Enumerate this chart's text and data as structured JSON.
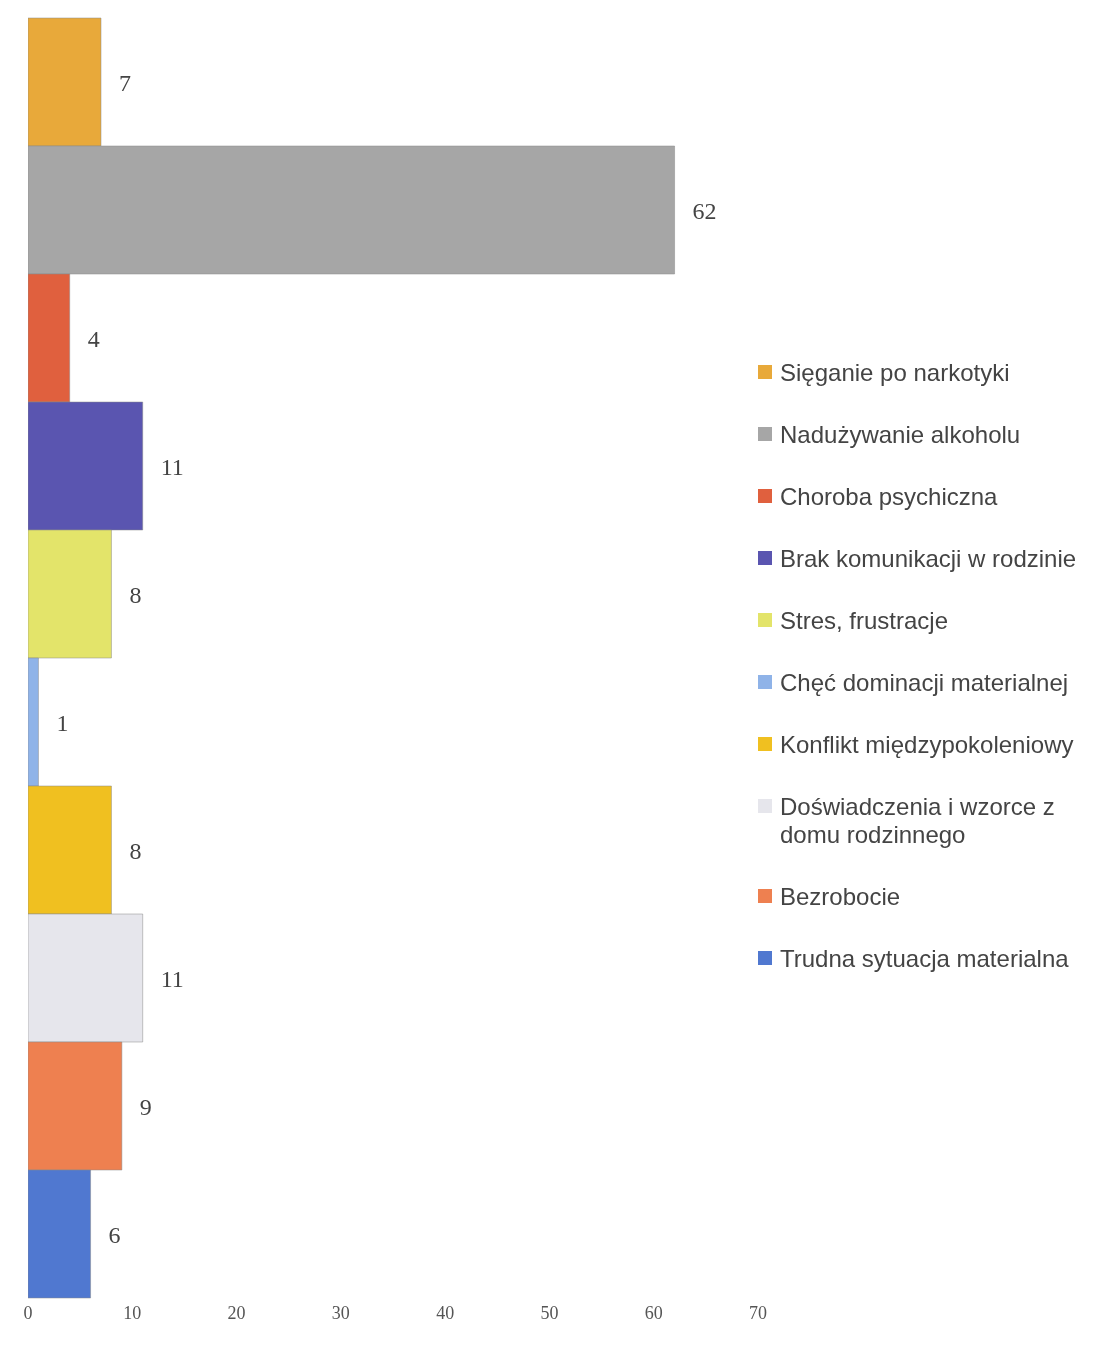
{
  "chart_data": {
    "type": "bar",
    "orientation": "horizontal",
    "stacked": true,
    "categories": [
      null,
      null,
      null,
      null,
      null,
      null,
      null,
      null,
      null,
      null
    ],
    "series": [
      {
        "name": "Sięganie po narkotyki",
        "color": "#e8a93a",
        "values": [
          7,
          null,
          null,
          null,
          null,
          null,
          null,
          null,
          null,
          null
        ]
      },
      {
        "name": "Nadużywanie alkoholu",
        "color": "#a6a6a6",
        "values": [
          null,
          62,
          null,
          null,
          null,
          null,
          null,
          null,
          null,
          null
        ]
      },
      {
        "name": "Choroba psychiczna",
        "color": "#e0603e",
        "values": [
          null,
          null,
          4,
          null,
          null,
          null,
          null,
          null,
          null,
          null
        ]
      },
      {
        "name": "Brak komunikacji w rodzinie",
        "color": "#5a55b0",
        "values": [
          null,
          null,
          null,
          11,
          null,
          null,
          null,
          null,
          null,
          null
        ]
      },
      {
        "name": "Stres, frustracje",
        "color": "#e3e46a",
        "values": [
          null,
          null,
          null,
          null,
          8,
          null,
          null,
          null,
          null,
          null
        ]
      },
      {
        "name": "Chęć dominacji materialnej",
        "color": "#8fb3e8",
        "values": [
          null,
          null,
          null,
          null,
          null,
          1,
          null,
          null,
          null,
          null
        ]
      },
      {
        "name": "Konflikt międzypokoleniowy",
        "color": "#f0c020",
        "values": [
          null,
          null,
          null,
          null,
          null,
          null,
          8,
          null,
          null,
          null
        ]
      },
      {
        "name": "Doświadczenia i wzorce z domu rodzinnego",
        "color": "#e6e6ec",
        "values": [
          null,
          null,
          null,
          null,
          null,
          null,
          null,
          11,
          null,
          null
        ]
      },
      {
        "name": "Bezrobocie",
        "color": "#ee8050",
        "values": [
          null,
          null,
          null,
          null,
          null,
          null,
          null,
          null,
          9,
          null
        ]
      },
      {
        "name": "Trudna sytuacja materialna",
        "color": "#5078d0",
        "values": [
          null,
          null,
          null,
          null,
          null,
          null,
          null,
          null,
          null,
          6
        ]
      }
    ],
    "xlim": [
      0,
      70
    ],
    "xticks": [
      0,
      10,
      20,
      30,
      40,
      50,
      60,
      70
    ],
    "tick_labels": "x",
    "data_labels": true,
    "legend": "right",
    "grid": false
  }
}
